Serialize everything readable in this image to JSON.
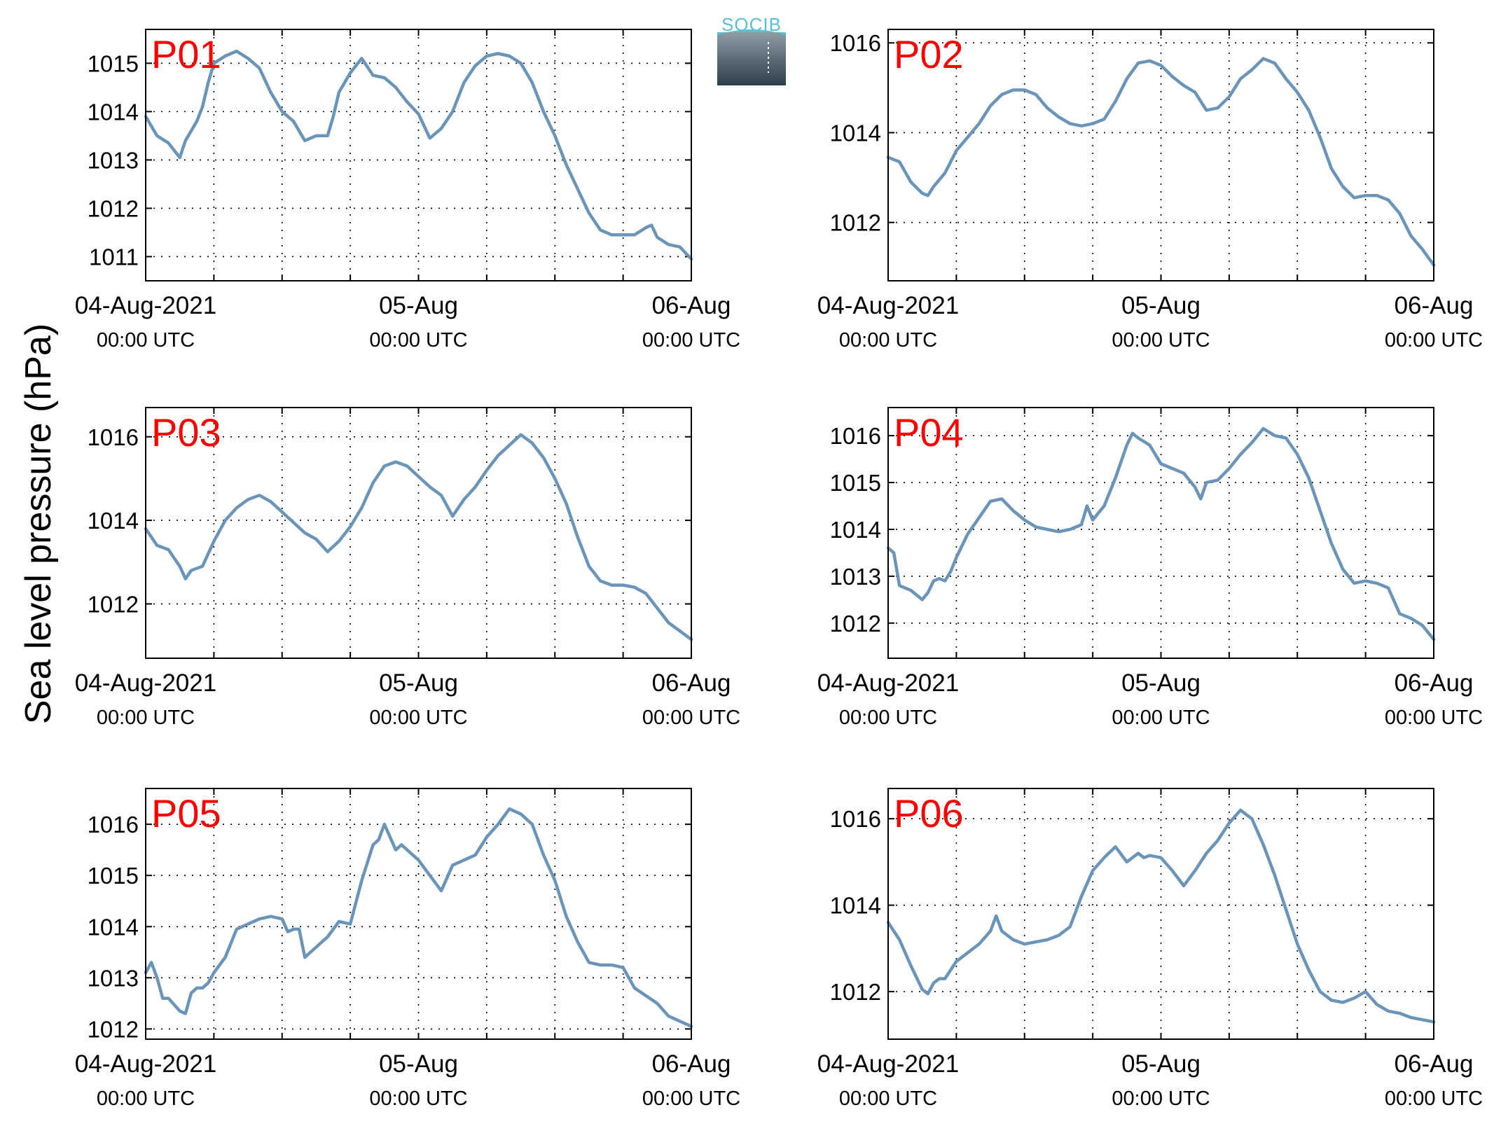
{
  "figure": {
    "ylabel": "Sea level pressure (hPa)",
    "logo": {
      "text": "SOCIB"
    },
    "line_color": "#6a94b8",
    "label_color": "#ff0000"
  },
  "chart_data": [
    {
      "type": "line",
      "title": "P01",
      "ylabel": "Sea level pressure (hPa)",
      "xlim": [
        0,
        48
      ],
      "ylim": [
        1010.5,
        1015.7
      ],
      "yticks": [
        1011,
        1012,
        1013,
        1014,
        1015
      ],
      "xticks": [
        {
          "x": 0,
          "date": "04-Aug-2021",
          "time": "00:00 UTC"
        },
        {
          "x": 24,
          "date": "05-Aug",
          "time": "00:00 UTC"
        },
        {
          "x": 48,
          "date": "06-Aug",
          "time": "00:00 UTC"
        }
      ],
      "grid": true,
      "series": [
        {
          "x": [
            0,
            1,
            2,
            3,
            3.5,
            4,
            4.5,
            5,
            5.5,
            6,
            7,
            8,
            9,
            10,
            11,
            12,
            13,
            14,
            15,
            16,
            16.5,
            17,
            18,
            19,
            20,
            21,
            22,
            23,
            24,
            25,
            26,
            27,
            28,
            29,
            30,
            31,
            32,
            33,
            34,
            34.5,
            35,
            36,
            37,
            38,
            39,
            40,
            41,
            42,
            43,
            44,
            44.5,
            45,
            46,
            47,
            48
          ],
          "y": [
            1013.9,
            1013.5,
            1013.35,
            1013.05,
            1013.4,
            1013.6,
            1013.8,
            1014.1,
            1014.6,
            1015.0,
            1015.15,
            1015.25,
            1015.1,
            1014.9,
            1014.4,
            1014.0,
            1013.8,
            1013.4,
            1013.5,
            1013.5,
            1013.9,
            1014.4,
            1014.8,
            1015.1,
            1014.75,
            1014.7,
            1014.5,
            1014.2,
            1013.95,
            1013.45,
            1013.65,
            1014.0,
            1014.6,
            1014.95,
            1015.15,
            1015.2,
            1015.15,
            1015.0,
            1014.6,
            1014.3,
            1014.0,
            1013.5,
            1012.9,
            1012.4,
            1011.9,
            1011.55,
            1011.45,
            1011.45,
            1011.45,
            1011.6,
            1011.65,
            1011.4,
            1011.25,
            1011.2,
            1010.95
          ]
        }
      ]
    },
    {
      "type": "line",
      "title": "P02",
      "ylabel": "Sea level pressure (hPa)",
      "xlim": [
        0,
        48
      ],
      "ylim": [
        1010.7,
        1016.3
      ],
      "yticks": [
        1012,
        1014,
        1016
      ],
      "xticks": [
        {
          "x": 0,
          "date": "04-Aug-2021",
          "time": "00:00 UTC"
        },
        {
          "x": 24,
          "date": "05-Aug",
          "time": "00:00 UTC"
        },
        {
          "x": 48,
          "date": "06-Aug",
          "time": "00:00 UTC"
        }
      ],
      "grid": true,
      "series": [
        {
          "x": [
            0,
            1,
            2,
            3,
            3.5,
            4,
            5,
            6,
            7,
            8,
            9,
            10,
            11,
            12,
            13,
            14,
            15,
            16,
            17,
            18,
            19,
            20,
            21,
            22,
            23,
            24,
            25,
            26,
            27,
            28,
            29,
            30,
            31,
            32,
            33,
            34,
            35,
            36,
            37,
            38,
            39,
            40,
            41,
            42,
            43,
            44,
            45,
            46,
            47,
            48
          ],
          "y": [
            1013.45,
            1013.35,
            1012.9,
            1012.65,
            1012.6,
            1012.8,
            1013.1,
            1013.6,
            1013.9,
            1014.2,
            1014.6,
            1014.85,
            1014.95,
            1014.95,
            1014.85,
            1014.55,
            1014.35,
            1014.2,
            1014.15,
            1014.2,
            1014.3,
            1014.7,
            1015.2,
            1015.55,
            1015.6,
            1015.5,
            1015.25,
            1015.05,
            1014.9,
            1014.5,
            1014.55,
            1014.8,
            1015.2,
            1015.4,
            1015.65,
            1015.55,
            1015.2,
            1014.9,
            1014.5,
            1013.9,
            1013.2,
            1012.8,
            1012.55,
            1012.6,
            1012.6,
            1012.5,
            1012.2,
            1011.7,
            1011.4,
            1011.05
          ]
        }
      ]
    },
    {
      "type": "line",
      "title": "P03",
      "ylabel": "Sea level pressure (hPa)",
      "xlim": [
        0,
        48
      ],
      "ylim": [
        1010.7,
        1016.7
      ],
      "yticks": [
        1012,
        1014,
        1016
      ],
      "xticks": [
        {
          "x": 0,
          "date": "04-Aug-2021",
          "time": "00:00 UTC"
        },
        {
          "x": 24,
          "date": "05-Aug",
          "time": "00:00 UTC"
        },
        {
          "x": 48,
          "date": "06-Aug",
          "time": "00:00 UTC"
        }
      ],
      "grid": true,
      "series": [
        {
          "x": [
            0,
            1,
            2,
            3,
            3.5,
            4,
            4.5,
            5,
            6,
            7,
            8,
            9,
            10,
            11,
            12,
            13,
            14,
            15,
            16,
            17,
            18,
            19,
            20,
            21,
            22,
            23,
            24,
            25,
            26,
            27,
            28,
            29,
            30,
            31,
            32,
            33,
            34,
            35,
            36,
            37,
            38,
            39,
            40,
            41,
            42,
            43,
            44,
            45,
            46,
            47,
            48
          ],
          "y": [
            1013.8,
            1013.4,
            1013.3,
            1012.9,
            1012.6,
            1012.8,
            1012.85,
            1012.9,
            1013.5,
            1014.0,
            1014.3,
            1014.5,
            1014.6,
            1014.45,
            1014.2,
            1013.95,
            1013.7,
            1013.55,
            1013.25,
            1013.5,
            1013.85,
            1014.3,
            1014.9,
            1015.3,
            1015.4,
            1015.3,
            1015.05,
            1014.8,
            1014.6,
            1014.1,
            1014.5,
            1014.8,
            1015.2,
            1015.55,
            1015.8,
            1016.05,
            1015.85,
            1015.5,
            1015.0,
            1014.4,
            1013.6,
            1012.9,
            1012.55,
            1012.45,
            1012.45,
            1012.4,
            1012.25,
            1011.9,
            1011.55,
            1011.35,
            1011.15
          ]
        }
      ]
    },
    {
      "type": "line",
      "title": "P04",
      "ylabel": "Sea level pressure (hPa)",
      "xlim": [
        0,
        48
      ],
      "ylim": [
        1011.25,
        1016.6
      ],
      "yticks": [
        1012,
        1013,
        1014,
        1015,
        1016
      ],
      "xticks": [
        {
          "x": 0,
          "date": "04-Aug-2021",
          "time": "00:00 UTC"
        },
        {
          "x": 24,
          "date": "05-Aug",
          "time": "00:00 UTC"
        },
        {
          "x": 48,
          "date": "06-Aug",
          "time": "00:00 UTC"
        }
      ],
      "grid": true,
      "series": [
        {
          "x": [
            0,
            0.5,
            1,
            2,
            3,
            3.5,
            4,
            4.5,
            5,
            5.5,
            6,
            7,
            8,
            9,
            10,
            11,
            12,
            13,
            14,
            15,
            16,
            17,
            17.5,
            18,
            19,
            20,
            21,
            21.5,
            22,
            23,
            24,
            25,
            26,
            27,
            27.5,
            28,
            29,
            30,
            31,
            32,
            33,
            34,
            35,
            36,
            37,
            38,
            39,
            40,
            41,
            42,
            43,
            44,
            45,
            46,
            47,
            48
          ],
          "y": [
            1013.6,
            1013.5,
            1012.8,
            1012.7,
            1012.5,
            1012.65,
            1012.9,
            1012.95,
            1012.9,
            1013.1,
            1013.4,
            1013.9,
            1014.25,
            1014.6,
            1014.65,
            1014.4,
            1014.2,
            1014.05,
            1014.0,
            1013.95,
            1014.0,
            1014.1,
            1014.5,
            1014.2,
            1014.5,
            1015.1,
            1015.8,
            1016.05,
            1015.95,
            1015.8,
            1015.4,
            1015.3,
            1015.2,
            1014.9,
            1014.65,
            1015.0,
            1015.05,
            1015.3,
            1015.6,
            1015.85,
            1016.15,
            1016.0,
            1015.95,
            1015.6,
            1015.1,
            1014.4,
            1013.7,
            1013.15,
            1012.85,
            1012.9,
            1012.85,
            1012.75,
            1012.2,
            1012.1,
            1011.95,
            1011.65
          ]
        }
      ]
    },
    {
      "type": "line",
      "title": "P05",
      "ylabel": "Sea level pressure (hPa)",
      "xlim": [
        0,
        48
      ],
      "ylim": [
        1011.8,
        1016.7
      ],
      "yticks": [
        1012,
        1013,
        1014,
        1015,
        1016
      ],
      "xticks": [
        {
          "x": 0,
          "date": "04-Aug-2021",
          "time": "00:00 UTC"
        },
        {
          "x": 24,
          "date": "05-Aug",
          "time": "00:00 UTC"
        },
        {
          "x": 48,
          "date": "06-Aug",
          "time": "00:00 UTC"
        }
      ],
      "grid": true,
      "series": [
        {
          "x": [
            0,
            0.5,
            1,
            1.5,
            2,
            3,
            3.5,
            4,
            4.5,
            5,
            5.5,
            6,
            7,
            8,
            9,
            10,
            11,
            12,
            12.5,
            13,
            13.5,
            14,
            15,
            16,
            17,
            18,
            19,
            20,
            20.5,
            21,
            22,
            22.5,
            23,
            24,
            25,
            26,
            27,
            27.5,
            28,
            29,
            30,
            31,
            32,
            33,
            34,
            35,
            36,
            37,
            38,
            39,
            40,
            41,
            42,
            43,
            44,
            45,
            46,
            47,
            48
          ],
          "y": [
            1013.1,
            1013.3,
            1013.0,
            1012.6,
            1012.6,
            1012.35,
            1012.3,
            1012.7,
            1012.8,
            1012.8,
            1012.9,
            1013.1,
            1013.4,
            1013.95,
            1014.05,
            1014.15,
            1014.2,
            1014.15,
            1013.9,
            1013.95,
            1013.95,
            1013.4,
            1013.6,
            1013.8,
            1014.1,
            1014.05,
            1014.9,
            1015.6,
            1015.7,
            1016.0,
            1015.5,
            1015.6,
            1015.5,
            1015.3,
            1015.0,
            1014.7,
            1015.2,
            1015.25,
            1015.3,
            1015.4,
            1015.75,
            1016.0,
            1016.3,
            1016.2,
            1016.0,
            1015.4,
            1014.9,
            1014.2,
            1013.7,
            1013.3,
            1013.25,
            1013.25,
            1013.2,
            1012.8,
            1012.65,
            1012.5,
            1012.25,
            1012.15,
            1012.05
          ]
        }
      ]
    },
    {
      "type": "line",
      "title": "P06",
      "ylabel": "Sea level pressure (hPa)",
      "xlim": [
        0,
        48
      ],
      "ylim": [
        1010.9,
        1016.7
      ],
      "yticks": [
        1012,
        1014,
        1016
      ],
      "xticks": [
        {
          "x": 0,
          "date": "04-Aug-2021",
          "time": "00:00 UTC"
        },
        {
          "x": 24,
          "date": "05-Aug",
          "time": "00:00 UTC"
        },
        {
          "x": 48,
          "date": "06-Aug",
          "time": "00:00 UTC"
        }
      ],
      "grid": true,
      "series": [
        {
          "x": [
            0,
            1,
            2,
            3,
            3.5,
            4,
            4.5,
            5,
            6,
            7,
            8,
            9,
            9.5,
            10,
            11,
            12,
            13,
            14,
            15,
            16,
            17,
            18,
            19,
            20,
            21,
            22,
            22.5,
            23,
            24,
            25,
            26,
            27,
            28,
            29,
            30,
            31,
            32,
            33,
            34,
            35,
            36,
            37,
            38,
            39,
            40,
            41,
            42,
            43,
            44,
            45,
            46,
            47,
            48
          ],
          "y": [
            1013.6,
            1013.2,
            1012.6,
            1012.05,
            1011.95,
            1012.2,
            1012.3,
            1012.3,
            1012.7,
            1012.9,
            1013.1,
            1013.4,
            1013.75,
            1013.4,
            1013.2,
            1013.1,
            1013.15,
            1013.2,
            1013.3,
            1013.5,
            1014.2,
            1014.8,
            1015.1,
            1015.35,
            1015.0,
            1015.2,
            1015.1,
            1015.15,
            1015.1,
            1014.8,
            1014.45,
            1014.8,
            1015.2,
            1015.5,
            1015.9,
            1016.2,
            1016.0,
            1015.4,
            1014.7,
            1013.9,
            1013.1,
            1012.5,
            1012.0,
            1011.8,
            1011.75,
            1011.85,
            1012.0,
            1011.7,
            1011.55,
            1011.5,
            1011.4,
            1011.35,
            1011.3
          ]
        }
      ]
    }
  ]
}
